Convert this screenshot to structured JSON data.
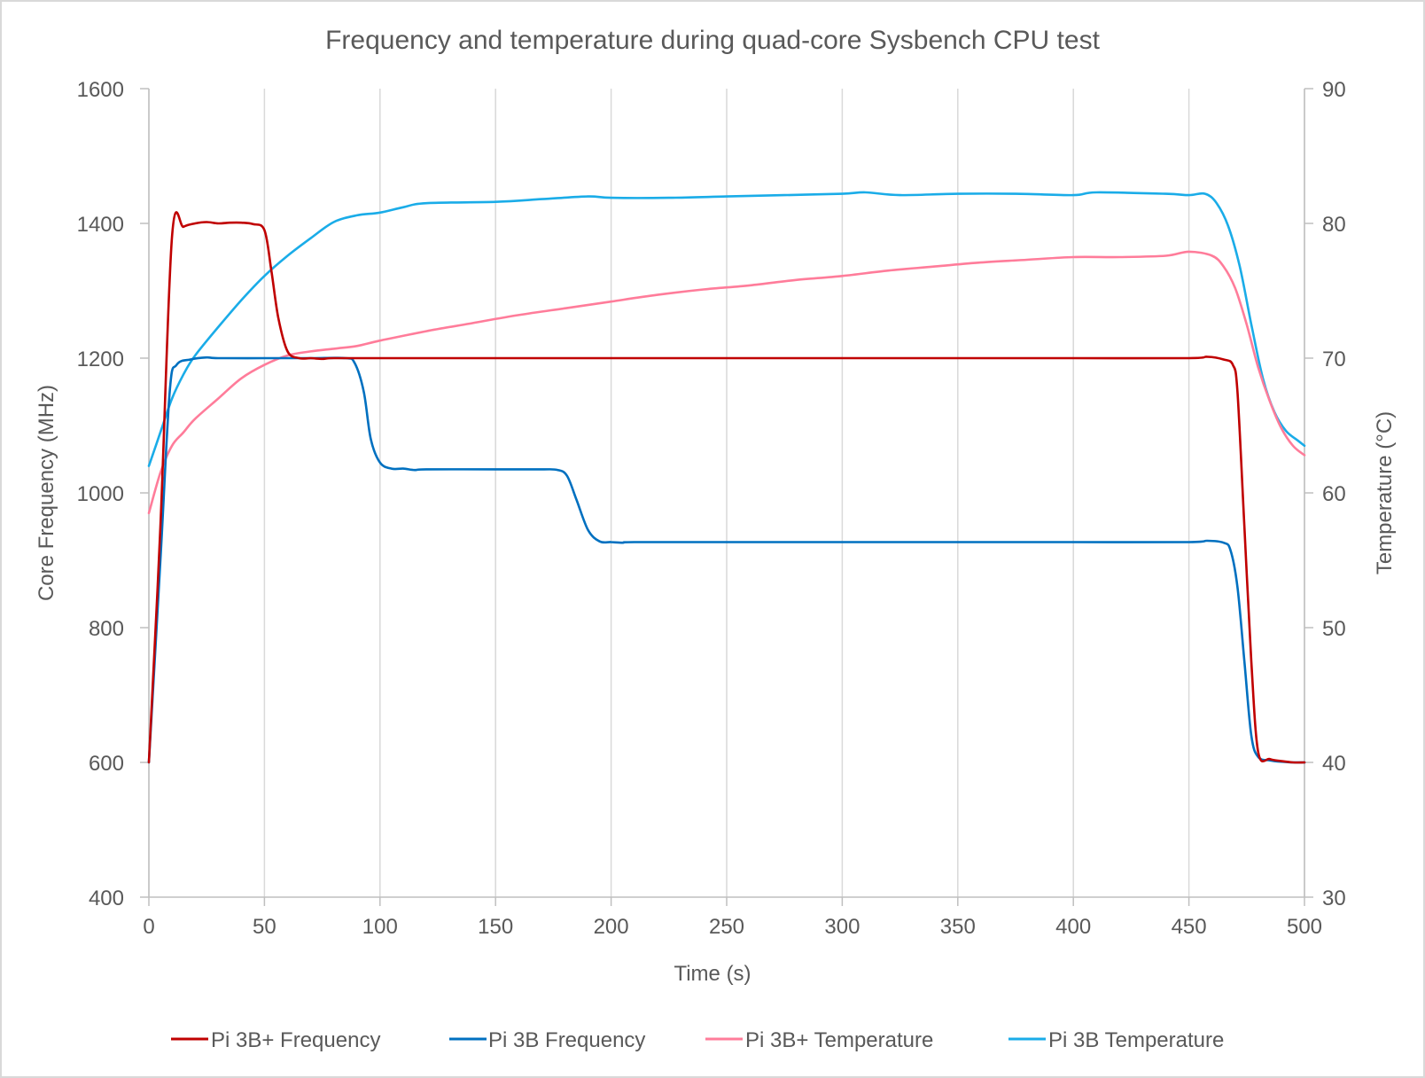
{
  "chart_data": {
    "type": "line",
    "title": "Frequency and temperature during quad-core Sysbench CPU test",
    "xlabel": "Time (s)",
    "ylabel": "Core Frequency (MHz)",
    "y2label": "Temperature (°C)",
    "xlim": [
      0,
      500
    ],
    "ylim": [
      400,
      1600
    ],
    "y2lim": [
      30,
      90
    ],
    "x_ticks": [
      "0",
      "50",
      "100",
      "150",
      "200",
      "250",
      "300",
      "350",
      "400",
      "450",
      "500"
    ],
    "y_ticks": [
      "400",
      "600",
      "800",
      "1000",
      "1200",
      "1400",
      "1600"
    ],
    "y2_ticks": [
      "30",
      "40",
      "50",
      "60",
      "70",
      "80",
      "90"
    ],
    "grid": "vertical",
    "legend_position": "bottom",
    "series": [
      {
        "name": "Pi 3B+ Frequency",
        "axis": "left",
        "color": "#C00000",
        "points": [
          [
            0,
            600
          ],
          [
            5,
            950
          ],
          [
            10,
            1380
          ],
          [
            15,
            1395
          ],
          [
            20,
            1400
          ],
          [
            25,
            1402
          ],
          [
            30,
            1400
          ],
          [
            35,
            1401
          ],
          [
            40,
            1401
          ],
          [
            45,
            1399
          ],
          [
            50,
            1390
          ],
          [
            53,
            1330
          ],
          [
            56,
            1260
          ],
          [
            60,
            1210
          ],
          [
            65,
            1200
          ],
          [
            70,
            1200
          ],
          [
            75,
            1199
          ],
          [
            80,
            1200
          ],
          [
            100,
            1200
          ],
          [
            150,
            1200
          ],
          [
            200,
            1200
          ],
          [
            250,
            1200
          ],
          [
            300,
            1200
          ],
          [
            350,
            1200
          ],
          [
            400,
            1200
          ],
          [
            450,
            1200
          ],
          [
            458,
            1202
          ],
          [
            465,
            1198
          ],
          [
            469,
            1190
          ],
          [
            471,
            1150
          ],
          [
            474,
            950
          ],
          [
            477,
            750
          ],
          [
            480,
            615
          ],
          [
            485,
            605
          ],
          [
            490,
            602
          ],
          [
            495,
            600
          ],
          [
            500,
            600
          ]
        ]
      },
      {
        "name": "Pi 3B Frequency",
        "axis": "left",
        "color": "#0070C0",
        "points": [
          [
            0,
            600
          ],
          [
            5,
            900
          ],
          [
            9,
            1150
          ],
          [
            12,
            1190
          ],
          [
            18,
            1198
          ],
          [
            25,
            1201
          ],
          [
            30,
            1200
          ],
          [
            50,
            1200
          ],
          [
            70,
            1200
          ],
          [
            85,
            1200
          ],
          [
            89,
            1193
          ],
          [
            93,
            1150
          ],
          [
            96,
            1080
          ],
          [
            100,
            1045
          ],
          [
            105,
            1036
          ],
          [
            110,
            1036
          ],
          [
            115,
            1034
          ],
          [
            120,
            1035
          ],
          [
            150,
            1035
          ],
          [
            170,
            1035
          ],
          [
            177,
            1034
          ],
          [
            181,
            1025
          ],
          [
            185,
            990
          ],
          [
            190,
            945
          ],
          [
            195,
            928
          ],
          [
            200,
            927
          ],
          [
            205,
            926
          ],
          [
            210,
            927
          ],
          [
            250,
            927
          ],
          [
            300,
            927
          ],
          [
            350,
            927
          ],
          [
            400,
            927
          ],
          [
            450,
            927
          ],
          [
            458,
            929
          ],
          [
            465,
            926
          ],
          [
            468,
            915
          ],
          [
            471,
            860
          ],
          [
            474,
            750
          ],
          [
            477,
            640
          ],
          [
            480,
            608
          ],
          [
            485,
            603
          ],
          [
            490,
            601
          ],
          [
            495,
            600
          ],
          [
            500,
            600
          ]
        ]
      },
      {
        "name": "Pi 3B+ Temperature",
        "axis": "right",
        "color": "#FF7C9A",
        "points": [
          [
            0,
            58.5
          ],
          [
            5,
            61.5
          ],
          [
            10,
            63.5
          ],
          [
            15,
            64.5
          ],
          [
            20,
            65.5
          ],
          [
            30,
            67
          ],
          [
            40,
            68.5
          ],
          [
            50,
            69.5
          ],
          [
            60,
            70.2
          ],
          [
            70,
            70.5
          ],
          [
            80,
            70.7
          ],
          [
            90,
            70.9
          ],
          [
            100,
            71.3
          ],
          [
            120,
            72
          ],
          [
            140,
            72.6
          ],
          [
            160,
            73.2
          ],
          [
            180,
            73.7
          ],
          [
            200,
            74.2
          ],
          [
            220,
            74.7
          ],
          [
            240,
            75.1
          ],
          [
            260,
            75.4
          ],
          [
            280,
            75.8
          ],
          [
            300,
            76.1
          ],
          [
            320,
            76.5
          ],
          [
            340,
            76.8
          ],
          [
            360,
            77.1
          ],
          [
            380,
            77.3
          ],
          [
            400,
            77.5
          ],
          [
            420,
            77.5
          ],
          [
            440,
            77.6
          ],
          [
            450,
            77.9
          ],
          [
            460,
            77.6
          ],
          [
            465,
            76.8
          ],
          [
            470,
            75.2
          ],
          [
            475,
            72.5
          ],
          [
            480,
            69.3
          ],
          [
            485,
            66.8
          ],
          [
            490,
            64.8
          ],
          [
            495,
            63.5
          ],
          [
            500,
            62.8
          ]
        ]
      },
      {
        "name": "Pi 3B Temperature",
        "axis": "right",
        "color": "#1AACE8",
        "points": [
          [
            0,
            62
          ],
          [
            5,
            64.5
          ],
          [
            10,
            67
          ],
          [
            15,
            68.8
          ],
          [
            20,
            70.2
          ],
          [
            30,
            72.3
          ],
          [
            40,
            74.3
          ],
          [
            50,
            76.1
          ],
          [
            60,
            77.6
          ],
          [
            70,
            78.9
          ],
          [
            80,
            80.1
          ],
          [
            90,
            80.6
          ],
          [
            100,
            80.8
          ],
          [
            110,
            81.2
          ],
          [
            120,
            81.5
          ],
          [
            150,
            81.6
          ],
          [
            170,
            81.8
          ],
          [
            190,
            82
          ],
          [
            200,
            81.9
          ],
          [
            225,
            81.9
          ],
          [
            250,
            82
          ],
          [
            275,
            82.1
          ],
          [
            300,
            82.2
          ],
          [
            310,
            82.3
          ],
          [
            325,
            82.1
          ],
          [
            350,
            82.2
          ],
          [
            375,
            82.2
          ],
          [
            400,
            82.1
          ],
          [
            410,
            82.3
          ],
          [
            440,
            82.2
          ],
          [
            450,
            82.1
          ],
          [
            457,
            82.2
          ],
          [
            462,
            81.5
          ],
          [
            467,
            79.8
          ],
          [
            472,
            76.8
          ],
          [
            477,
            72.5
          ],
          [
            482,
            68.5
          ],
          [
            487,
            66
          ],
          [
            492,
            64.6
          ],
          [
            497,
            63.9
          ],
          [
            500,
            63.5
          ]
        ]
      }
    ]
  }
}
